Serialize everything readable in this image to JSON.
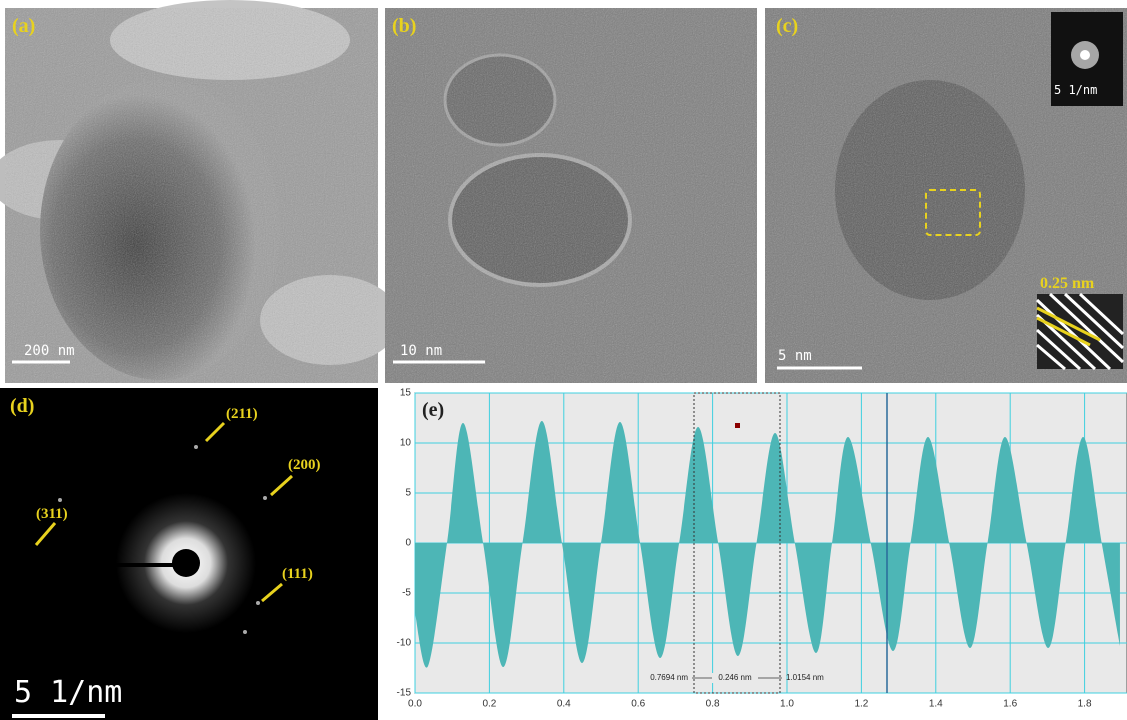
{
  "panels": [
    {
      "label": "(a)",
      "scale_bar": "200 nm"
    },
    {
      "label": "(b)",
      "scale_bar": "10 nm"
    },
    {
      "label": "(c)",
      "scale_bar": "5 nm",
      "inset_fft_scale": "5 1/nm",
      "inset_spacing": "0.25 nm"
    },
    {
      "label": "(d)",
      "scale_bar": "5 1/nm",
      "planes": [
        "(211)",
        "(200)",
        "(311)",
        "(111)"
      ]
    }
  ],
  "chart_data": {
    "type": "area",
    "label": "(e)",
    "x": [
      0,
      0.035,
      0.086,
      0.129,
      0.183,
      0.237,
      0.289,
      0.341,
      0.395,
      0.449,
      0.5,
      0.551,
      0.605,
      0.659,
      0.71,
      0.761,
      0.815,
      0.868,
      0.918,
      0.968,
      1.021,
      1.078,
      1.121,
      1.164,
      1.225,
      1.285,
      1.332,
      1.379,
      1.436,
      1.492,
      1.539,
      1.586,
      1.644,
      1.702,
      1.749,
      1.796,
      1.846,
      1.895
    ],
    "values": [
      -7,
      -12.3,
      0,
      12,
      0,
      -12.4,
      0,
      12.2,
      0,
      -12,
      0,
      12.1,
      0,
      -11.5,
      0,
      11.6,
      0,
      -11.3,
      0,
      11,
      0,
      -11,
      0,
      10.6,
      0,
      -10.8,
      0,
      10.6,
      0,
      -10.5,
      0,
      10.6,
      0,
      -10.5,
      0,
      10.6,
      0,
      -10.3
    ],
    "xlim": [
      0,
      1.914
    ],
    "ylim": [
      -15,
      15
    ],
    "xticks": [
      {
        "value": 0,
        "label": "0.0"
      },
      {
        "value": 0.2,
        "label": "0.2"
      },
      {
        "value": 0.4,
        "label": "0.4"
      },
      {
        "value": 0.6,
        "label": "0.6"
      },
      {
        "value": 0.8,
        "label": "0.8"
      },
      {
        "value": 1,
        "label": "1.0"
      },
      {
        "value": 1.2,
        "label": "1.2"
      },
      {
        "value": 1.4,
        "label": "1.4"
      },
      {
        "value": 1.6,
        "label": "1.6"
      },
      {
        "value": 1.8,
        "label": "1.8"
      }
    ],
    "yticks": [
      -15,
      -10,
      -5,
      0,
      5,
      10,
      15
    ],
    "color": "#4db6b6",
    "grid": true,
    "annotations": [
      "0.7694 nm",
      "0.246 nm",
      "1.0154 nm"
    ]
  }
}
